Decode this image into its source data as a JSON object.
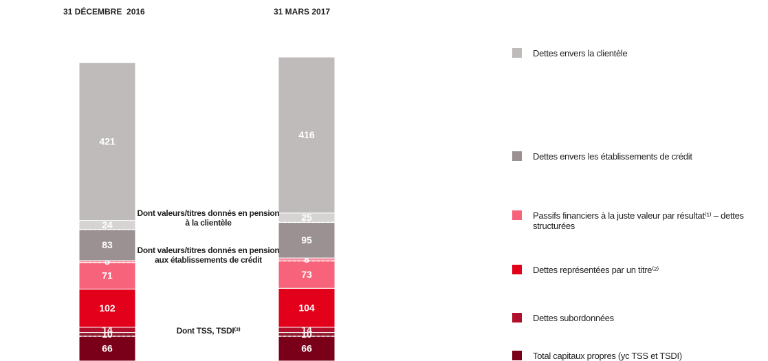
{
  "chart_data": {
    "type": "stacked-bar",
    "categories": [
      "31 DÉCEMBRE  2016",
      "31 MARS 2017"
    ],
    "series": [
      {
        "name": "Total capitaux propres (yc TSS et TSDI)",
        "color": "#7a0019",
        "values": [
          66,
          66
        ]
      },
      {
        "name": "Dont TSS, TSDI⁽³⁾",
        "color": "#8e1a2c",
        "values": [
          10,
          10
        ],
        "dashed": true
      },
      {
        "name": "Dettes subordonnées",
        "color": "#b0102b",
        "values": [
          14,
          14
        ]
      },
      {
        "name": "Dettes représentées par un titre⁽²⁾",
        "color": "#e2001a",
        "values": [
          102,
          104
        ]
      },
      {
        "name": "Passifs financiers à la juste valeur par résultat⁽¹⁾ – dettes structurées",
        "color": "#f7637a",
        "values": [
          71,
          73
        ]
      },
      {
        "name": "Dont valeurs/titres donnés en pension aux établissements de crédit",
        "color": "#f58a9a",
        "values": [
          5,
          8
        ],
        "dashed": true
      },
      {
        "name": "Dettes envers les établissements de crédit",
        "color": "#9b9193",
        "values": [
          83,
          95
        ]
      },
      {
        "name": "Dont valeurs/titres donnés en pension à la clientèle",
        "color": "#d6d3d3",
        "values": [
          24,
          25
        ],
        "dashed": true
      },
      {
        "name": "Dettes envers la clientèle",
        "color": "#bfbbbb",
        "values": [
          421,
          416
        ]
      }
    ]
  }
}
